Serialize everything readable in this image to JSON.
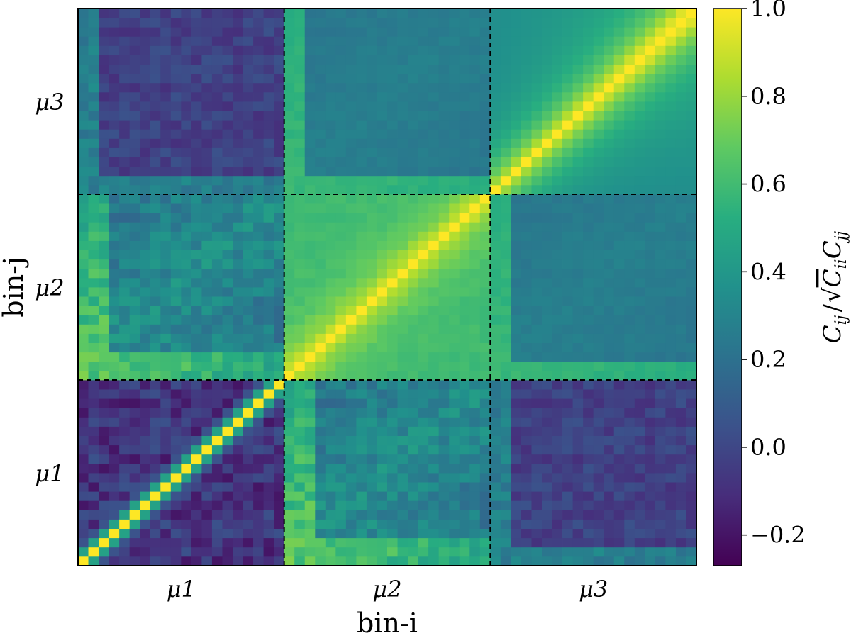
{
  "chart_data": {
    "type": "heatmap",
    "title": "",
    "xlabel": "bin-i",
    "ylabel": "bin-j",
    "x_block_labels": [
      "μ1",
      "μ2",
      "μ3"
    ],
    "y_block_labels": [
      "μ1",
      "μ2",
      "μ3"
    ],
    "blocks_per_axis": 3,
    "bins_per_block": 20,
    "colorbar": {
      "label": "Cij / √(Cii Cjj)",
      "label_parts": {
        "num": "C",
        "num_sub": "ij",
        "sep": "/",
        "den": "C",
        "den_sub1": "ii",
        "den2": "C",
        "den_sub2": "jj"
      },
      "range": [
        -0.27,
        1.0
      ],
      "ticks": [
        1.0,
        0.8,
        0.6,
        0.4,
        0.2,
        0.0,
        -0.2
      ],
      "tick_labels": [
        "1.0",
        "0.8",
        "0.6",
        "0.4",
        "0.2",
        "0.0",
        "−0.2"
      ],
      "colormap": "viridis"
    },
    "block_correlation_model": {
      "description_values": "approximate correlation levels read from colour",
      "diagonal_value": 1.0,
      "mu1_mu1": {
        "near_diagonal_falloff": 0.45,
        "background": 0.05,
        "min": -0.22
      },
      "mu2_mu2": {
        "near_diagonal_falloff": 0.72,
        "background": 0.62
      },
      "mu3_mu3": {
        "near_diagonal_falloff": 0.78,
        "background": 0.4
      },
      "mu1_mu2": {
        "mean": 0.3,
        "min": 0.0,
        "max": 0.65
      },
      "mu1_mu3": {
        "mean": 0.05,
        "min": -0.2,
        "max": 0.5
      },
      "mu2_mu3": {
        "mean": 0.25,
        "min": 0.15,
        "max": 0.6
      }
    },
    "block_separators": "dashed",
    "grid": false
  }
}
